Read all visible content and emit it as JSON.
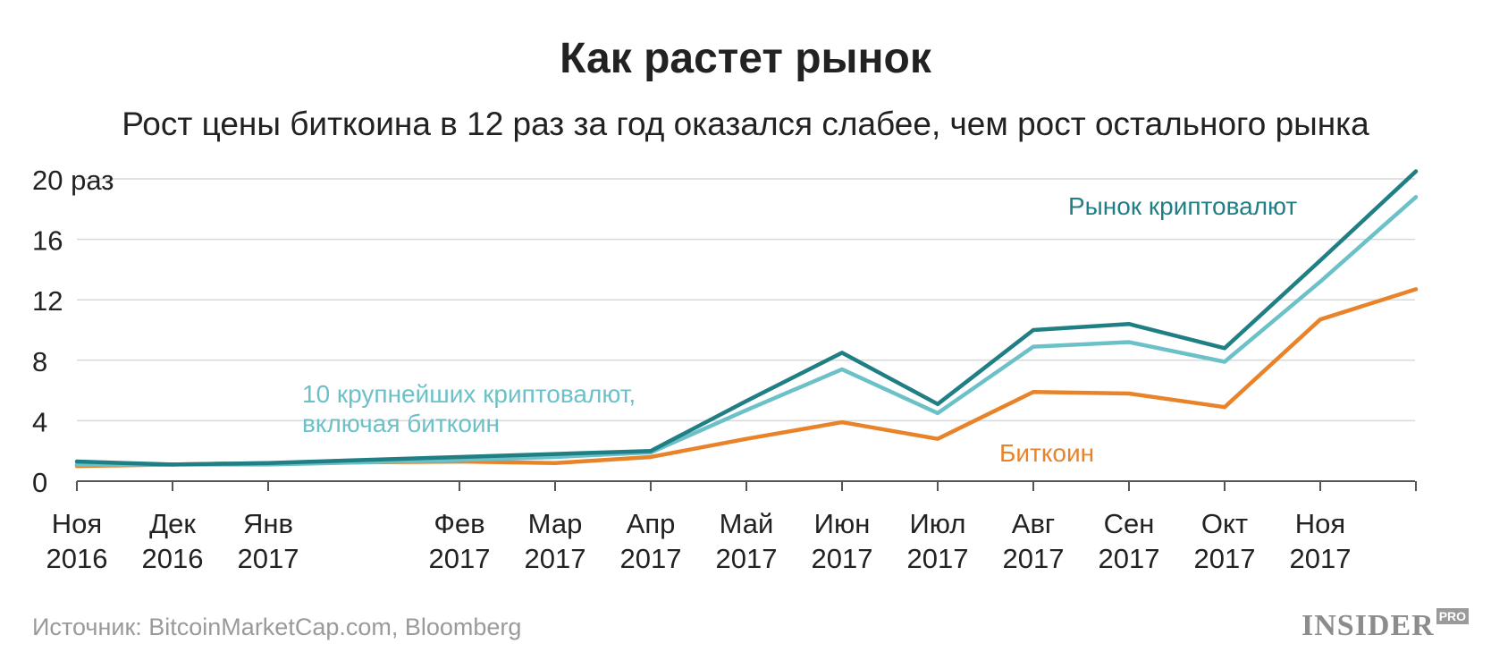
{
  "chart_data": {
    "type": "line",
    "title": "Как растет рынок",
    "subtitle": "Рост цены биткоина в 12 раз за год оказался слабее, чем рост остального рынка",
    "x": [
      0,
      1,
      2,
      4,
      5,
      6,
      7,
      8,
      9,
      10,
      11,
      12,
      13,
      14
    ],
    "x_ticks": [
      {
        "label": [
          "Ноя",
          "2016"
        ],
        "x": 0
      },
      {
        "label": [
          "Дек",
          "2016"
        ],
        "x": 1
      },
      {
        "label": [
          "Янв",
          "2017"
        ],
        "x": 2
      },
      {
        "label": [
          "Фев",
          "2017"
        ],
        "x": 4
      },
      {
        "label": [
          "Мар",
          "2017"
        ],
        "x": 5
      },
      {
        "label": [
          "Апр",
          "2017"
        ],
        "x": 6
      },
      {
        "label": [
          "Май",
          "2017"
        ],
        "x": 7
      },
      {
        "label": [
          "Июн",
          "2017"
        ],
        "x": 8
      },
      {
        "label": [
          "Июл",
          "2017"
        ],
        "x": 9
      },
      {
        "label": [
          "Авг",
          "2017"
        ],
        "x": 10
      },
      {
        "label": [
          "Сен",
          "2017"
        ],
        "x": 11
      },
      {
        "label": [
          "Окт",
          "2017"
        ],
        "x": 12
      },
      {
        "label": [
          "Ноя",
          "2017"
        ],
        "x": 13
      },
      {
        "label": [
          "",
          ""
        ],
        "x": 14
      }
    ],
    "xlim": [
      0,
      14
    ],
    "ylim": [
      0,
      20
    ],
    "y_ticks": [
      {
        "label": "0",
        "value": 0
      },
      {
        "label": "4",
        "value": 4
      },
      {
        "label": "8",
        "value": 8
      },
      {
        "label": "12",
        "value": 12
      },
      {
        "label": "16",
        "value": 16
      },
      {
        "label": "20 раз",
        "value": 20
      }
    ],
    "grid": true,
    "series": [
      {
        "name": "Рынок криптовалют",
        "color": "#1f7f84",
        "values": [
          1.3,
          1.1,
          1.2,
          1.6,
          1.8,
          2.0,
          5.3,
          8.5,
          5.1,
          10.0,
          10.4,
          8.8,
          14.6,
          20.5
        ]
      },
      {
        "name": "10 крупнейших криптовалют, включая биткоин",
        "color": "#6cc1c8",
        "values": [
          1.1,
          1.1,
          1.1,
          1.4,
          1.6,
          1.9,
          4.7,
          7.4,
          4.5,
          8.9,
          9.2,
          7.9,
          13.2,
          18.8
        ]
      },
      {
        "name": "Биткоин",
        "color": "#e8832a",
        "values": [
          1.0,
          1.1,
          1.2,
          1.3,
          1.2,
          1.6,
          2.8,
          3.9,
          2.8,
          5.9,
          5.8,
          4.9,
          10.7,
          12.7
        ]
      }
    ],
    "annotations": [
      {
        "series": 0,
        "lines": [
          "Рынок криптовалют"
        ]
      },
      {
        "series": 1,
        "lines": [
          "10 крупнейших криптовалют,",
          "включая биткоин"
        ]
      },
      {
        "series": 2,
        "lines": [
          "Биткоин"
        ]
      }
    ]
  },
  "footer": {
    "source": "Источник: BitcoinMarketCap.com, Bloomberg",
    "logo_main": "INSIDER",
    "logo_sub": "PRO"
  }
}
